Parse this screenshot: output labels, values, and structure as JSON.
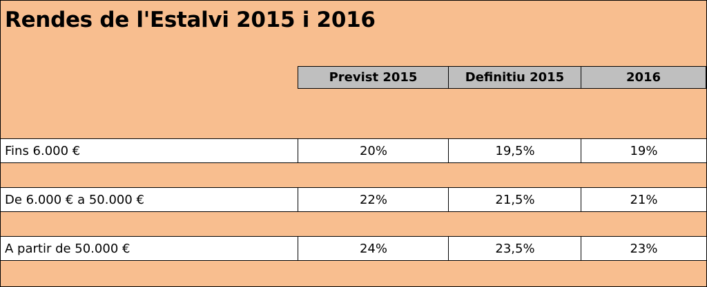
{
  "title": "Rendes de l'Estalvi 2015 i 2016",
  "columns": [
    "Previst 2015",
    "Definitiu 2015",
    "2016"
  ],
  "rows": [
    {
      "label": "Fins 6.000 €",
      "values": [
        "20%",
        "19,5%",
        "19%"
      ]
    },
    {
      "label": "De 6.000 € a 50.000 €",
      "values": [
        "22%",
        "21,5%",
        "21%"
      ]
    },
    {
      "label": "A partir de 50.000 €",
      "values": [
        "24%",
        "23,5%",
        "23%"
      ]
    }
  ],
  "colors": {
    "background": "#f8be8f",
    "header_fill": "#bfbfbf",
    "row_fill": "#ffffff",
    "border": "#000000"
  }
}
